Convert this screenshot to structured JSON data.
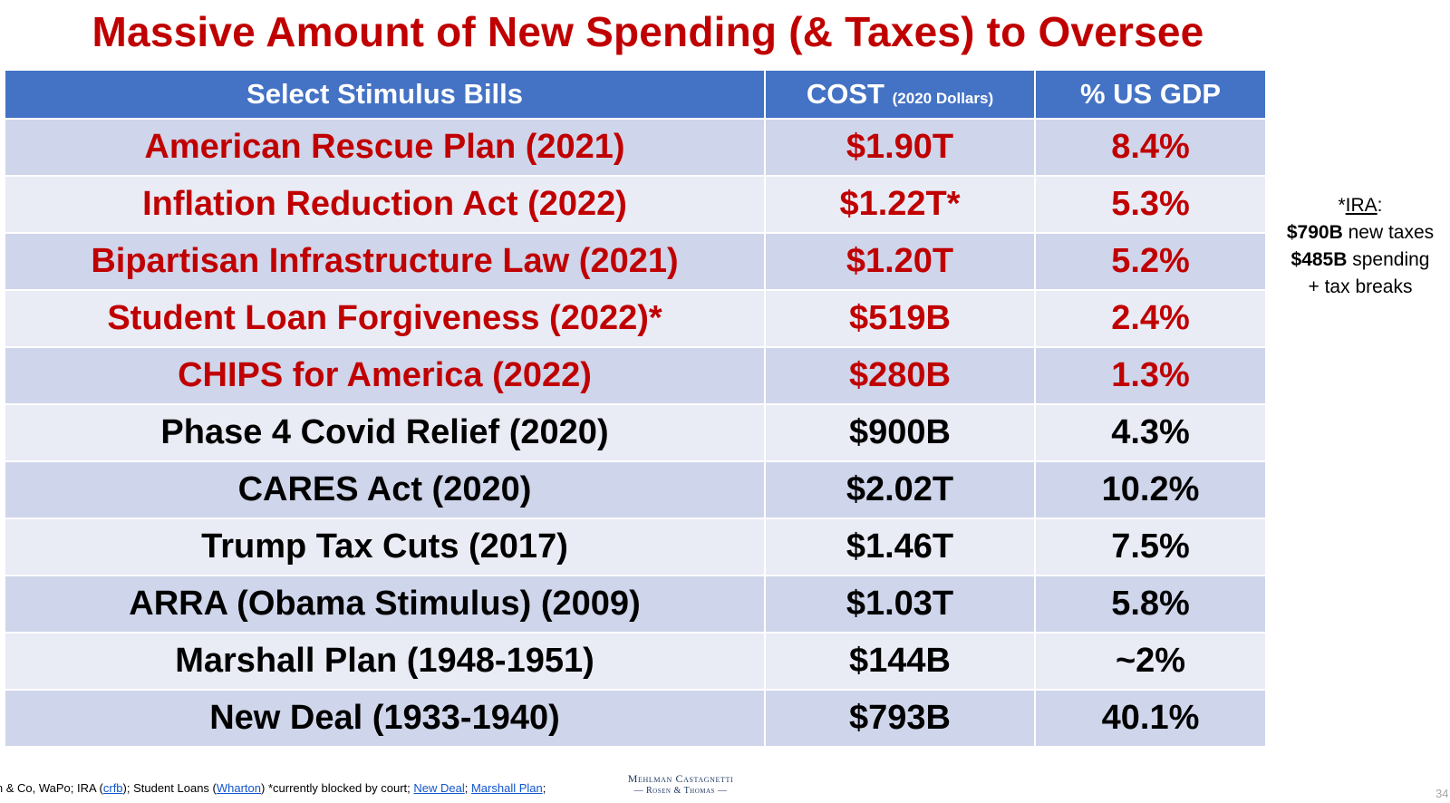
{
  "title": "Massive Amount of New Spending (& Taxes) to Oversee",
  "table": {
    "headers": {
      "bills": "Select Stimulus Bills",
      "cost": "COST",
      "cost_note": "(2020 Dollars)",
      "gdp": "% US GDP"
    },
    "rows": [
      {
        "bill": "American Rescue Plan (2021)",
        "cost": "$1.90T",
        "gdp": "8.4%",
        "color": "#c00000"
      },
      {
        "bill": "Inflation Reduction Act (2022)",
        "cost": "$1.22T*",
        "gdp": "5.3%",
        "color": "#c00000"
      },
      {
        "bill": "Bipartisan Infrastructure Law (2021)",
        "cost": "$1.20T",
        "gdp": "5.2%",
        "color": "#c00000"
      },
      {
        "bill": "Student Loan Forgiveness (2022)*",
        "cost": "$519B",
        "gdp": "2.4%",
        "color": "#c00000"
      },
      {
        "bill": "CHIPS for America (2022)",
        "cost": "$280B",
        "gdp": "1.3%",
        "color": "#c00000"
      },
      {
        "bill": "Phase 4 Covid Relief (2020)",
        "cost": "$900B",
        "gdp": "4.3%",
        "color": "#000000"
      },
      {
        "bill": "CARES Act (2020)",
        "cost": "$2.02T",
        "gdp": "10.2%",
        "color": "#000000"
      },
      {
        "bill": "Trump Tax Cuts (2017)",
        "cost": "$1.46T",
        "gdp": "7.5%",
        "color": "#000000"
      },
      {
        "bill": "ARRA (Obama Stimulus) (2009)",
        "cost": "$1.03T",
        "gdp": "5.8%",
        "color": "#000000"
      },
      {
        "bill": "Marshall Plan (1948-1951)",
        "cost": "$144B",
        "gdp": "~2%",
        "color": "#000000"
      },
      {
        "bill": "New Deal (1933-1940)",
        "cost": "$793B",
        "gdp": "40.1%",
        "color": "#000000"
      }
    ]
  },
  "ira_note": {
    "prefix": "*",
    "label": "IRA",
    "suffix": ":",
    "line2_bold": "$790B",
    "line2_rest": " new taxes",
    "line3_bold": "$485B",
    "line3_rest": " spending",
    "line4": "+ tax breaks"
  },
  "footer": {
    "t1": "owen & Co, WaPo; IRA (",
    "link1": "crfb",
    "t2": "); Student Loans (",
    "link2": "Wharton",
    "t3": ") *currently blocked by court; ",
    "link3": "New Deal",
    "t4": "; ",
    "link4": "Marshall Plan",
    "t5": ";"
  },
  "logo": {
    "line1": "Mehlman Castagnetti",
    "line2": "Rosen & Thomas"
  },
  "page_number": "34"
}
